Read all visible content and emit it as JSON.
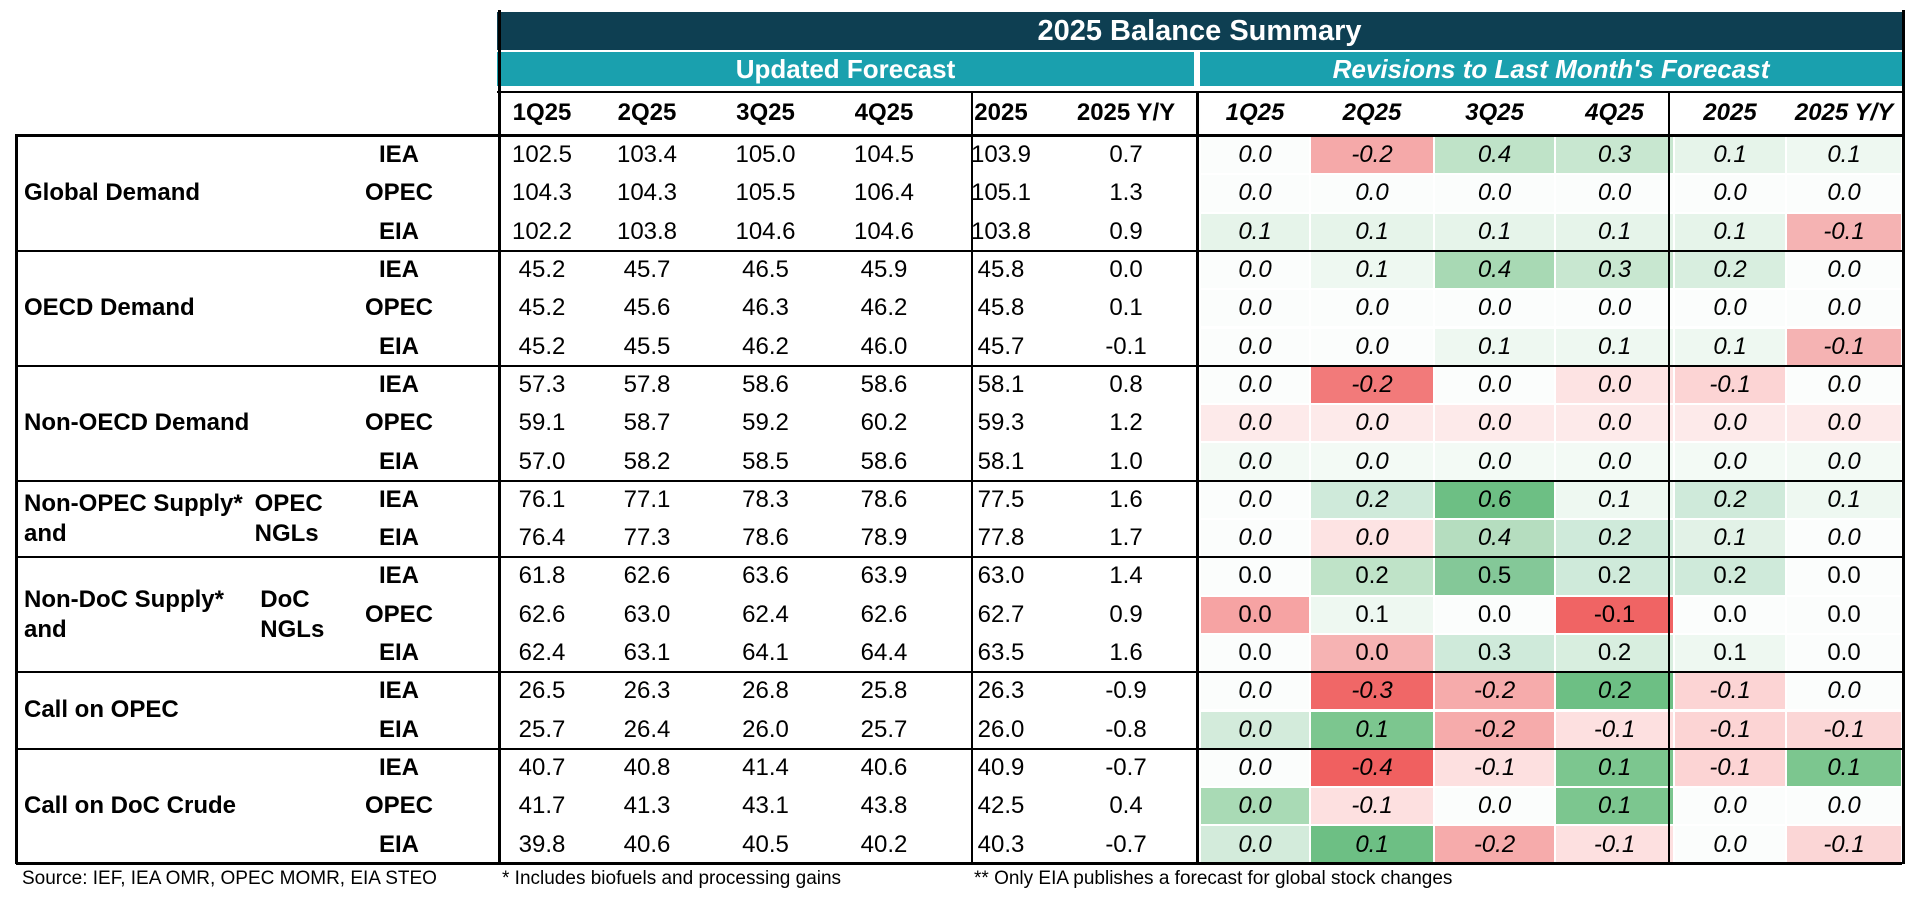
{
  "table": {
    "title": "2025 Balance Summary",
    "section_updated": "Updated Forecast",
    "section_revisions": "Revisions to Last Month's Forecast",
    "columns_updated": [
      "1Q25",
      "2Q25",
      "3Q25",
      "4Q25",
      "2025",
      "2025 Y/Y"
    ],
    "columns_revisions": [
      "1Q25",
      "2Q25",
      "3Q25",
      "4Q25",
      "2025",
      "2025 Y/Y"
    ],
    "groups": [
      {
        "label": "Global Demand",
        "italic_revisions": true,
        "rows": [
          {
            "source": "IEA",
            "updated": [
              "102.5",
              "103.4",
              "105.0",
              "104.5",
              "103.9",
              "0.7"
            ],
            "revisions": [
              "0.0",
              "-0.2",
              "0.4",
              "0.3",
              "0.1",
              "0.1"
            ]
          },
          {
            "source": "OPEC",
            "updated": [
              "104.3",
              "104.3",
              "105.5",
              "106.4",
              "105.1",
              "1.3"
            ],
            "revisions": [
              "0.0",
              "0.0",
              "0.0",
              "0.0",
              "0.0",
              "0.0"
            ]
          },
          {
            "source": "EIA",
            "updated": [
              "102.2",
              "103.8",
              "104.6",
              "104.6",
              "103.8",
              "0.9"
            ],
            "revisions": [
              "0.1",
              "0.1",
              "0.1",
              "0.1",
              "0.1",
              "-0.1"
            ]
          }
        ]
      },
      {
        "label": "OECD Demand",
        "italic_revisions": true,
        "rows": [
          {
            "source": "IEA",
            "updated": [
              "45.2",
              "45.7",
              "46.5",
              "45.9",
              "45.8",
              "0.0"
            ],
            "revisions": [
              "0.0",
              "0.1",
              "0.4",
              "0.3",
              "0.2",
              "0.0"
            ]
          },
          {
            "source": "OPEC",
            "updated": [
              "45.2",
              "45.6",
              "46.3",
              "46.2",
              "45.8",
              "0.1"
            ],
            "revisions": [
              "0.0",
              "0.0",
              "0.0",
              "0.0",
              "0.0",
              "0.0"
            ]
          },
          {
            "source": "EIA",
            "updated": [
              "45.2",
              "45.5",
              "46.2",
              "46.0",
              "45.7",
              "-0.1"
            ],
            "revisions": [
              "0.0",
              "0.0",
              "0.1",
              "0.1",
              "0.1",
              "-0.1"
            ]
          }
        ]
      },
      {
        "label": "Non-OECD Demand",
        "italic_revisions": true,
        "rows": [
          {
            "source": "IEA",
            "updated": [
              "57.3",
              "57.8",
              "58.6",
              "58.6",
              "58.1",
              "0.8"
            ],
            "revisions": [
              "0.0",
              "-0.2",
              "0.0",
              "0.0",
              "-0.1",
              "0.0"
            ]
          },
          {
            "source": "OPEC",
            "updated": [
              "59.1",
              "58.7",
              "59.2",
              "60.2",
              "59.3",
              "1.2"
            ],
            "revisions": [
              "0.0",
              "0.0",
              "0.0",
              "0.0",
              "0.0",
              "0.0"
            ]
          },
          {
            "source": "EIA",
            "updated": [
              "57.0",
              "58.2",
              "58.5",
              "58.6",
              "58.1",
              "1.0"
            ],
            "revisions": [
              "0.0",
              "0.0",
              "0.0",
              "0.0",
              "0.0",
              "0.0"
            ]
          }
        ]
      },
      {
        "label": "Non-OPEC Supply* and OPEC NGLs",
        "label_lines": [
          "Non-OPEC Supply* and",
          "OPEC NGLs"
        ],
        "italic_revisions": true,
        "rows": [
          {
            "source": "IEA",
            "updated": [
              "76.1",
              "77.1",
              "78.3",
              "78.6",
              "77.5",
              "1.6"
            ],
            "revisions": [
              "0.0",
              "0.2",
              "0.6",
              "0.1",
              "0.2",
              "0.1"
            ]
          },
          {
            "source": "EIA",
            "updated": [
              "76.4",
              "77.3",
              "78.6",
              "78.9",
              "77.8",
              "1.7"
            ],
            "revisions": [
              "0.0",
              "0.0",
              "0.4",
              "0.2",
              "0.1",
              "0.0"
            ]
          }
        ]
      },
      {
        "label": "Non-DoC Supply* and DoC NGLs",
        "label_lines": [
          "Non-DoC Supply* and",
          "DoC NGLs"
        ],
        "italic_revisions": false,
        "rows": [
          {
            "source": "IEA",
            "updated": [
              "61.8",
              "62.6",
              "63.6",
              "63.9",
              "63.0",
              "1.4"
            ],
            "revisions": [
              "0.0",
              "0.2",
              "0.5",
              "0.2",
              "0.2",
              "0.0"
            ]
          },
          {
            "source": "OPEC",
            "updated": [
              "62.6",
              "63.0",
              "62.4",
              "62.6",
              "62.7",
              "0.9"
            ],
            "revisions": [
              "0.0",
              "0.1",
              "0.0",
              "-0.1",
              "0.0",
              "0.0"
            ]
          },
          {
            "source": "EIA",
            "updated": [
              "62.4",
              "63.1",
              "64.1",
              "64.4",
              "63.5",
              "1.6"
            ],
            "revisions": [
              "0.0",
              "0.0",
              "0.3",
              "0.2",
              "0.1",
              "0.0"
            ]
          }
        ]
      },
      {
        "label": "Call on OPEC",
        "italic_revisions": true,
        "rows": [
          {
            "source": "IEA",
            "updated": [
              "26.5",
              "26.3",
              "26.8",
              "25.8",
              "26.3",
              "-0.9"
            ],
            "revisions": [
              "0.0",
              "-0.3",
              "-0.2",
              "0.2",
              "-0.1",
              "0.0"
            ]
          },
          {
            "source": "EIA",
            "updated": [
              "25.7",
              "26.4",
              "26.0",
              "25.7",
              "26.0",
              "-0.8"
            ],
            "revisions": [
              "0.0",
              "0.1",
              "-0.2",
              "-0.1",
              "-0.1",
              "-0.1"
            ]
          }
        ]
      },
      {
        "label": "Call on DoC Crude",
        "italic_revisions": true,
        "rows": [
          {
            "source": "IEA",
            "updated": [
              "40.7",
              "40.8",
              "41.4",
              "40.6",
              "40.9",
              "-0.7"
            ],
            "revisions": [
              "0.0",
              "-0.4",
              "-0.1",
              "0.1",
              "-0.1",
              "0.1"
            ]
          },
          {
            "source": "OPEC",
            "updated": [
              "41.7",
              "41.3",
              "43.1",
              "43.8",
              "42.5",
              "0.4"
            ],
            "revisions": [
              "0.0",
              "-0.1",
              "0.0",
              "0.1",
              "0.0",
              "0.0"
            ]
          },
          {
            "source": "EIA",
            "updated": [
              "39.8",
              "40.6",
              "40.5",
              "40.2",
              "40.3",
              "-0.7"
            ],
            "revisions": [
              "0.0",
              "0.1",
              "-0.2",
              "-0.1",
              "0.0",
              "-0.1"
            ]
          }
        ]
      }
    ],
    "revision_cell_colors": [
      [
        "#fbfdfc",
        "#f5a9a9",
        "#bfe3c8",
        "#c8e7d0",
        "#e6f4ea",
        "#eef8f1"
      ],
      [
        "#fbfdfc",
        "#fbfdfc",
        "#fbfdfc",
        "#fbfdfc",
        "#fbfdfc",
        "#fbfdfc"
      ],
      [
        "#e6f4ea",
        "#e6f4ea",
        "#e6f4ea",
        "#e6f4ea",
        "#e6f4ea",
        "#f5b3b3"
      ],
      [
        "#fbfdfc",
        "#eef8f1",
        "#a8d9b4",
        "#c8e7d0",
        "#d8eedf",
        "#fbfdfc"
      ],
      [
        "#fbfdfc",
        "#fbfdfc",
        "#fbfdfc",
        "#fbfdfc",
        "#fbfdfc",
        "#fbfdfc"
      ],
      [
        "#fbfdfc",
        "#fbfdfc",
        "#eef8f1",
        "#eef8f1",
        "#eef8f1",
        "#f5b3b3"
      ],
      [
        "#fbfdfc",
        "#f27a7a",
        "#fbfdfc",
        "#fde3e3",
        "#fcd4d4",
        "#fbfdfc"
      ],
      [
        "#fdeaea",
        "#fdeaea",
        "#fdeaea",
        "#fdeaea",
        "#fdeaea",
        "#fdeaea"
      ],
      [
        "#f3faf5",
        "#f3faf5",
        "#f3faf5",
        "#f3faf5",
        "#f3faf5",
        "#f3faf5"
      ],
      [
        "#fbfdfc",
        "#cfeada",
        "#6dbf84",
        "#eef8f1",
        "#cfeada",
        "#eef8f1"
      ],
      [
        "#fbfdfc",
        "#fde3e3",
        "#b5ddbf",
        "#cfeada",
        "#e2f2e7",
        "#fbfdfc"
      ],
      [
        "#fbfdfc",
        "#bfe3c8",
        "#84c898",
        "#cfeada",
        "#cfeada",
        "#fbfdfc"
      ],
      [
        "#f6a3a3",
        "#eef8f1",
        "#fbfdfc",
        "#f06464",
        "#fbfdfc",
        "#fbfdfc"
      ],
      [
        "#fbfdfc",
        "#f6b3b3",
        "#cfeada",
        "#d8eedf",
        "#eef8f1",
        "#fbfdfc"
      ],
      [
        "#fbfdfc",
        "#f06767",
        "#f6abab",
        "#6dbf84",
        "#fcd4d4",
        "#fbfdfc"
      ],
      [
        "#d3ebdb",
        "#7cc68f",
        "#f6abab",
        "#fde0e0",
        "#fcd4d4",
        "#fbd6d6"
      ],
      [
        "#fbfdfc",
        "#f06060",
        "#fde0e0",
        "#7cc68f",
        "#fcd4d4",
        "#7cc68f"
      ],
      [
        "#a9dab5",
        "#fde0e0",
        "#fbfdfc",
        "#7cc68f",
        "#fbfdfc",
        "#fbfdfc"
      ],
      [
        "#d3ebdb",
        "#6dbf84",
        "#f6abab",
        "#fde0e0",
        "#fbfdfc",
        "#fbd6d6"
      ]
    ]
  },
  "footer": {
    "source": "Source: IEF, IEA OMR, OPEC MOMR, EIA STEO",
    "note1": "* Includes biofuels and processing gains",
    "note2": "** Only EIA publishes a forecast for global stock changes"
  }
}
